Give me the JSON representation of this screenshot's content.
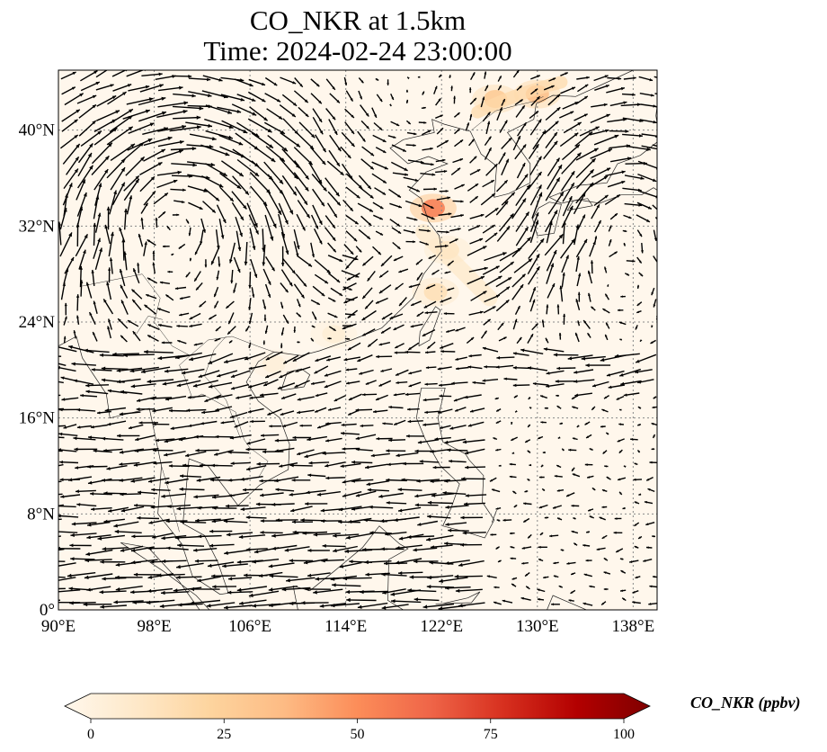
{
  "figure": {
    "title_line1": "CO_NKR at 1.5km",
    "title_line2": "Time: 2024-02-24 23:00:00"
  },
  "map": {
    "projection": "PlateCarree",
    "extent": {
      "lon": [
        90,
        140
      ],
      "lat": [
        0,
        45
      ]
    },
    "gridlines": "dotted gray",
    "coastlines": true,
    "country_borders": true,
    "field": "CO_NKR",
    "field_units": "ppbv",
    "overlay": "wind vectors (quiver)",
    "lon_ticks": [
      {
        "value": 90,
        "label": "90°E"
      },
      {
        "value": 98,
        "label": "98°E"
      },
      {
        "value": 106,
        "label": "106°E"
      },
      {
        "value": 114,
        "label": "114°E"
      },
      {
        "value": 122,
        "label": "122°E"
      },
      {
        "value": 130,
        "label": "130°E"
      },
      {
        "value": 138,
        "label": "138°E"
      }
    ],
    "lat_ticks": [
      {
        "value": 0,
        "label": "0°"
      },
      {
        "value": 8,
        "label": "8°N"
      },
      {
        "value": 16,
        "label": "16°N"
      },
      {
        "value": 24,
        "label": "24°N"
      },
      {
        "value": 32,
        "label": "32°N"
      },
      {
        "value": 40,
        "label": "40°N"
      }
    ],
    "concentration_hotspots": [
      {
        "lon": 121.3,
        "lat": 33.5,
        "value": 55
      },
      {
        "lon": 126.5,
        "lat": 42.6,
        "value": 30
      },
      {
        "lon": 130.0,
        "lat": 43.0,
        "value": 35
      },
      {
        "lon": 121.5,
        "lat": 26.5,
        "value": 18
      },
      {
        "lon": 122.5,
        "lat": 30.0,
        "value": 14
      },
      {
        "lon": 113.0,
        "lat": 23.0,
        "value": 8
      },
      {
        "lon": 108.0,
        "lat": 20.5,
        "value": 7
      }
    ]
  },
  "colorbar": {
    "label": "CO_NKR (ppbv)",
    "colormap": "OrRd",
    "extend": "both",
    "min": 0,
    "max": 100,
    "ticks": [
      {
        "value": 0,
        "label": "0"
      },
      {
        "value": 25,
        "label": "25"
      },
      {
        "value": 50,
        "label": "50"
      },
      {
        "value": 75,
        "label": "75"
      },
      {
        "value": 100,
        "label": "100"
      }
    ],
    "colors": [
      "#fff7ec",
      "#fee8c8",
      "#fdd49e",
      "#fdbb84",
      "#fc8d59",
      "#ef6548",
      "#d7301f",
      "#b30000",
      "#7f0000"
    ]
  }
}
